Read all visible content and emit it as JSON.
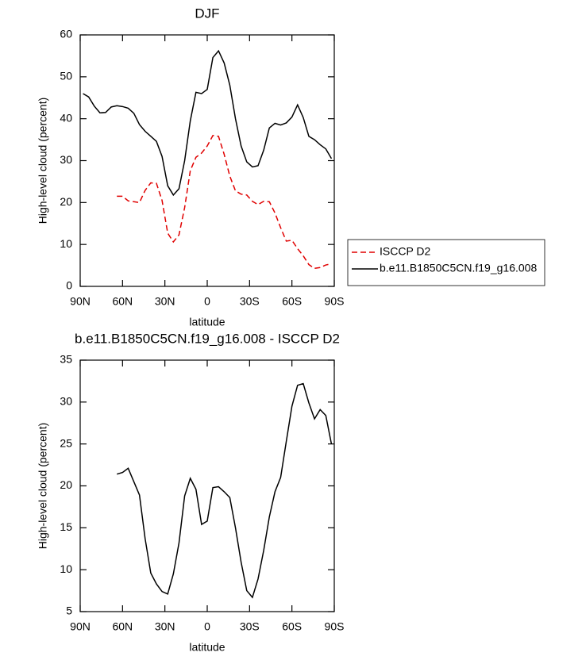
{
  "chart_data": [
    {
      "type": "line",
      "title": "DJF",
      "xlabel": "latitude",
      "ylabel": "High-level cloud (percent)",
      "x": [
        88,
        84,
        80,
        76,
        72,
        68,
        64,
        60,
        56,
        52,
        48,
        44,
        40,
        36,
        32,
        28,
        24,
        20,
        16,
        12,
        8,
        4,
        0,
        -4,
        -8,
        -12,
        -16,
        -20,
        -24,
        -28,
        -32,
        -36,
        -40,
        -44,
        -48,
        -52,
        -56,
        -60,
        -64,
        -68,
        -72,
        -76,
        -80,
        -84,
        -88
      ],
      "series": [
        {
          "name": "ISCCP D2",
          "color": "#e00000",
          "dashed": true,
          "values": [
            null,
            null,
            null,
            null,
            null,
            null,
            21.5,
            21.5,
            20.4,
            20.2,
            20,
            22.9,
            24.7,
            24.6,
            20.5,
            12.7,
            10.6,
            12.3,
            18.8,
            27.6,
            30.8,
            31.8,
            33.5,
            36,
            35.8,
            31.5,
            26.3,
            22.8,
            22,
            21.8,
            20.3,
            19.5,
            20.3,
            20.2,
            17.5,
            14,
            10.8,
            11,
            9,
            7.3,
            5.2,
            4.3,
            4.5,
            5.1,
            5.4
          ]
        },
        {
          "name": "b.e11.B1850C5CN.f19_g16.008",
          "color": "#000000",
          "dashed": false,
          "values": [
            46,
            45.2,
            43,
            41.4,
            41.5,
            42.8,
            43.1,
            42.9,
            42.5,
            41.3,
            38.6,
            37,
            35.8,
            34.6,
            31,
            24,
            21.8,
            23.3,
            30,
            39.5,
            46.3,
            46,
            47,
            54.6,
            56.2,
            53.3,
            48,
            40,
            33.5,
            29.7,
            28.5,
            28.8,
            32.5,
            37.8,
            38.9,
            38.5,
            39,
            40.4,
            43.3,
            40.3,
            35.8,
            35,
            33.8,
            32.8,
            30.5
          ]
        }
      ],
      "xlim": [
        90,
        -90
      ],
      "xticks": [
        {
          "value": 90,
          "label": "90N"
        },
        {
          "value": 60,
          "label": "60N"
        },
        {
          "value": 30,
          "label": "30N"
        },
        0,
        {
          "value": -30,
          "label": "30S"
        },
        {
          "value": -60,
          "label": "60S"
        },
        {
          "value": -90,
          "label": "90S"
        }
      ],
      "ylim": [
        0,
        60
      ],
      "yticks": [
        0,
        10,
        20,
        30,
        40,
        50,
        60
      ],
      "legend": "right",
      "grid": false
    },
    {
      "type": "line",
      "title": "b.e11.B1850C5CN.f19_g16.008 - ISCCP D2",
      "xlabel": "latitude",
      "ylabel": "High-level cloud (percent)",
      "x": [
        64,
        60,
        56,
        52,
        48,
        44,
        40,
        36,
        32,
        28,
        24,
        20,
        16,
        12,
        8,
        4,
        0,
        -4,
        -8,
        -12,
        -16,
        -20,
        -24,
        -28,
        -32,
        -36,
        -40,
        -44,
        -48,
        -52,
        -56,
        -60,
        -64,
        -68,
        -72,
        -76,
        -80,
        -84,
        -88
      ],
      "values": [
        21.4,
        21.6,
        22.1,
        20.5,
        18.9,
        13.7,
        9.6,
        8.3,
        7.4,
        7.1,
        9.5,
        13.2,
        18.8,
        20.9,
        19.6,
        15.4,
        15.8,
        19.8,
        19.9,
        19.3,
        18.6,
        15,
        10.9,
        7.5,
        6.7,
        8.9,
        12.3,
        16.3,
        19.3,
        21,
        25.3,
        29.5,
        32,
        32.2,
        29.9,
        28,
        29.1,
        28.4,
        25
      ],
      "color": "#000000",
      "xlim": [
        90,
        -90
      ],
      "xticks": [
        {
          "value": 90,
          "label": "90N"
        },
        {
          "value": 60,
          "label": "60N"
        },
        {
          "value": 30,
          "label": "30N"
        },
        0,
        {
          "value": -30,
          "label": "30S"
        },
        {
          "value": -60,
          "label": "60S"
        },
        {
          "value": -90,
          "label": "90S"
        }
      ],
      "ylim": [
        5,
        35
      ],
      "yticks": [
        5,
        10,
        15,
        20,
        25,
        30,
        35
      ],
      "grid": false
    }
  ]
}
